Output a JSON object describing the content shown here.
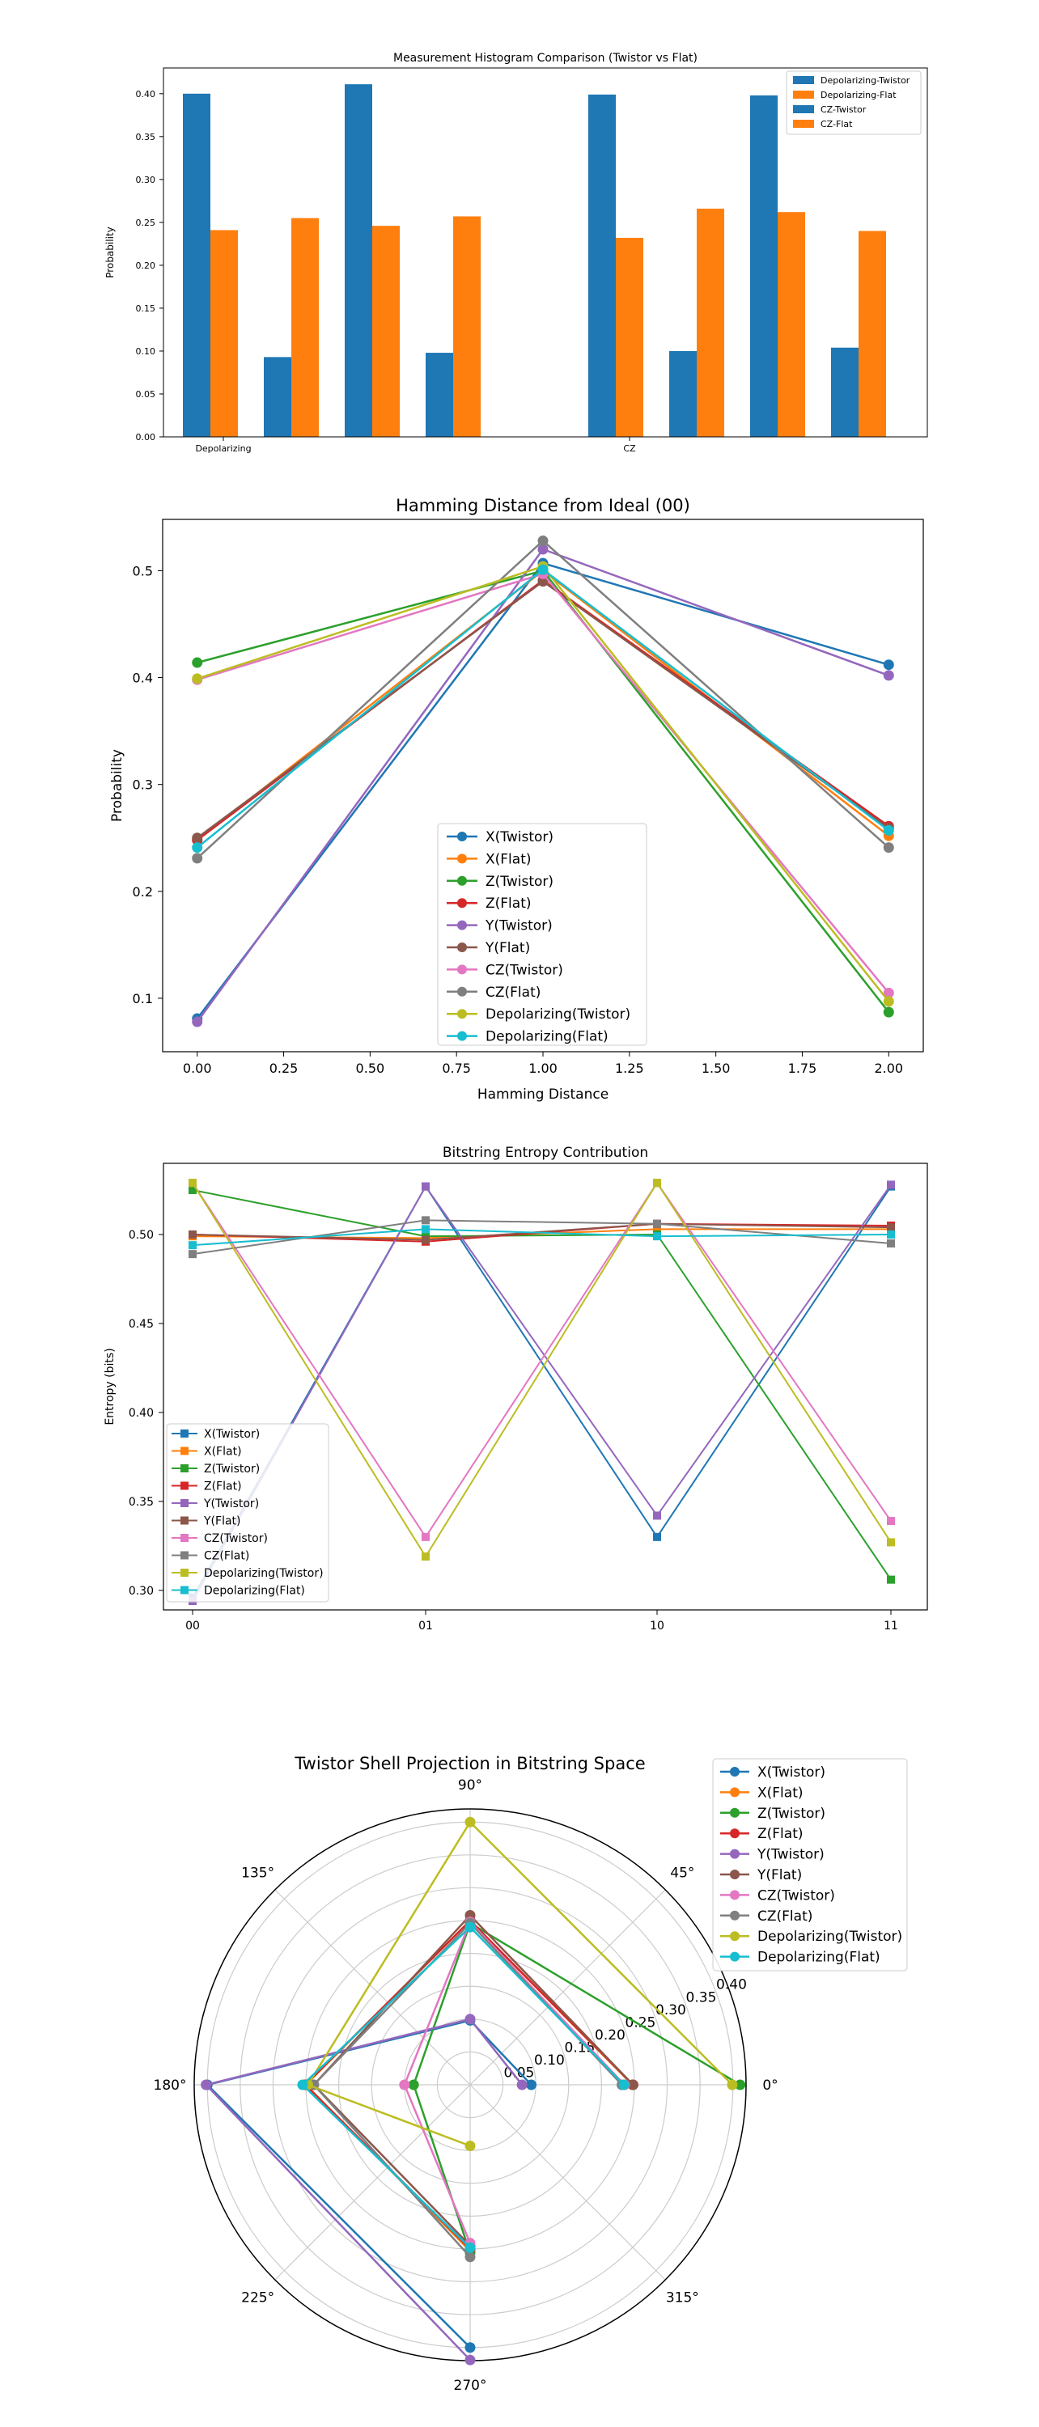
{
  "colors": {
    "blue": "#1f77b4",
    "orange": "#ff7f0e",
    "green": "#2ca02c",
    "red": "#d62728",
    "purple": "#9467bd",
    "brown": "#8c564b",
    "pink": "#e377c2",
    "gray": "#7f7f7f",
    "olive": "#bcbd22",
    "cyan": "#17becf"
  },
  "chart_data": [
    {
      "type": "bar",
      "title": "Measurement Histogram Comparison (Twistor vs Flat)",
      "xlabel": "",
      "ylabel": "Probability",
      "ylim": [
        0,
        0.43
      ],
      "yticks": [
        "0.00",
        "0.05",
        "0.10",
        "0.15",
        "0.20",
        "0.25",
        "0.30",
        "0.35",
        "0.40"
      ],
      "group_labels": [
        "Depolarizing",
        "CZ"
      ],
      "legend_position": "upper right",
      "series": [
        {
          "name": "Depolarizing-Twistor",
          "color": "#1f77b4",
          "values": [
            0.4,
            0.093,
            0.411,
            0.098
          ]
        },
        {
          "name": "Depolarizing-Flat",
          "color": "#ff7f0e",
          "values": [
            0.241,
            0.255,
            0.246,
            0.257
          ]
        },
        {
          "name": "CZ-Twistor",
          "color": "#1f77b4",
          "values": [
            0.399,
            0.1,
            0.398,
            0.104
          ]
        },
        {
          "name": "CZ-Flat",
          "color": "#ff7f0e",
          "values": [
            0.232,
            0.266,
            0.262,
            0.24
          ]
        }
      ]
    },
    {
      "type": "line",
      "title": "Hamming Distance from Ideal (00)",
      "xlabel": "Hamming Distance",
      "ylabel": "Probability",
      "x": [
        0,
        1,
        2
      ],
      "xlim": [
        -0.1,
        2.1
      ],
      "ylim": [
        0.05,
        0.548
      ],
      "xticks": [
        "0.00",
        "0.25",
        "0.50",
        "0.75",
        "1.00",
        "1.25",
        "1.50",
        "1.75",
        "2.00"
      ],
      "yticks": [
        "0.1",
        "0.2",
        "0.3",
        "0.4",
        "0.5"
      ],
      "legend_position": "lower center",
      "series": [
        {
          "name": "X(Twistor)",
          "color": "#1f77b4",
          "values": [
            0.081,
            0.507,
            0.412
          ]
        },
        {
          "name": "X(Flat)",
          "color": "#ff7f0e",
          "values": [
            0.248,
            0.5,
            0.252
          ]
        },
        {
          "name": "Z(Twistor)",
          "color": "#2ca02c",
          "values": [
            0.414,
            0.5,
            0.087
          ]
        },
        {
          "name": "Z(Flat)",
          "color": "#d62728",
          "values": [
            0.248,
            0.491,
            0.261
          ]
        },
        {
          "name": "Y(Twistor)",
          "color": "#9467bd",
          "values": [
            0.078,
            0.52,
            0.402
          ]
        },
        {
          "name": "Y(Flat)",
          "color": "#8c564b",
          "values": [
            0.25,
            0.49,
            0.259
          ]
        },
        {
          "name": "CZ(Twistor)",
          "color": "#e377c2",
          "values": [
            0.398,
            0.497,
            0.105
          ]
        },
        {
          "name": "CZ(Flat)",
          "color": "#7f7f7f",
          "values": [
            0.231,
            0.528,
            0.241
          ]
        },
        {
          "name": "Depolarizing(Twistor)",
          "color": "#bcbd22",
          "values": [
            0.399,
            0.504,
            0.097
          ]
        },
        {
          "name": "Depolarizing(Flat)",
          "color": "#17becf",
          "values": [
            0.241,
            0.501,
            0.257
          ]
        }
      ]
    },
    {
      "type": "line",
      "title": "Bitstring Entropy Contribution",
      "xlabel": "",
      "ylabel": "Entropy (bits)",
      "categories": [
        "00",
        "01",
        "10",
        "11"
      ],
      "ylim": [
        0.289,
        0.54
      ],
      "yticks": [
        "0.30",
        "0.35",
        "0.40",
        "0.45",
        "0.50"
      ],
      "legend_position": "lower left",
      "series": [
        {
          "name": "X(Twistor)",
          "color": "#1f77b4",
          "values": [
            0.296,
            0.527,
            0.33,
            0.527
          ]
        },
        {
          "name": "X(Flat)",
          "color": "#ff7f0e",
          "values": [
            0.499,
            0.498,
            0.503,
            0.503
          ]
        },
        {
          "name": "Z(Twistor)",
          "color": "#2ca02c",
          "values": [
            0.525,
            0.499,
            0.5,
            0.306
          ]
        },
        {
          "name": "Z(Flat)",
          "color": "#d62728",
          "values": [
            0.5,
            0.496,
            0.506,
            0.505
          ]
        },
        {
          "name": "Y(Twistor)",
          "color": "#9467bd",
          "values": [
            0.294,
            0.527,
            0.342,
            0.528
          ]
        },
        {
          "name": "Y(Flat)",
          "color": "#8c564b",
          "values": [
            0.5,
            0.497,
            0.506,
            0.504
          ]
        },
        {
          "name": "CZ(Twistor)",
          "color": "#e377c2",
          "values": [
            0.529,
            0.33,
            0.529,
            0.339
          ]
        },
        {
          "name": "CZ(Flat)",
          "color": "#7f7f7f",
          "values": [
            0.489,
            0.508,
            0.506,
            0.495
          ]
        },
        {
          "name": "Depolarizing(Twistor)",
          "color": "#bcbd22",
          "values": [
            0.529,
            0.319,
            0.529,
            0.327
          ]
        },
        {
          "name": "Depolarizing(Flat)",
          "color": "#17becf",
          "values": [
            0.494,
            0.503,
            0.499,
            0.5
          ]
        }
      ]
    },
    {
      "type": "polar",
      "title": "Twistor Shell Projection in Bitstring Space",
      "angles_deg": [
        0,
        90,
        180,
        270
      ],
      "rmax": 0.42,
      "rticks": [
        "0.05",
        "0.10",
        "0.15",
        "0.20",
        "0.25",
        "0.30",
        "0.35",
        "0.40"
      ],
      "theta_labels": [
        "0°",
        "45°",
        "90°",
        "135°",
        "180°",
        "225°",
        "270°",
        "315°"
      ],
      "legend_position": "upper right outside",
      "series": [
        {
          "name": "X(Twistor)",
          "color": "#1f77b4",
          "values": [
            0.093,
            0.098,
            0.4,
            0.4
          ]
        },
        {
          "name": "X(Flat)",
          "color": "#ff7f0e",
          "values": [
            0.247,
            0.25,
            0.25,
            0.253
          ]
        },
        {
          "name": "Z(Twistor)",
          "color": "#2ca02c",
          "values": [
            0.411,
            0.246,
            0.086,
            0.256
          ]
        },
        {
          "name": "Z(Flat)",
          "color": "#d62728",
          "values": [
            0.248,
            0.25,
            0.251,
            0.25
          ]
        },
        {
          "name": "Y(Twistor)",
          "color": "#9467bd",
          "values": [
            0.079,
            0.1,
            0.402,
            0.419
          ]
        },
        {
          "name": "Y(Flat)",
          "color": "#8c564b",
          "values": [
            0.248,
            0.258,
            0.238,
            0.245
          ]
        },
        {
          "name": "CZ(Twistor)",
          "color": "#e377c2",
          "values": [
            0.235,
            0.248,
            0.1,
            0.241
          ]
        },
        {
          "name": "CZ(Flat)",
          "color": "#7f7f7f",
          "values": [
            0.231,
            0.246,
            0.238,
            0.262
          ]
        },
        {
          "name": "Depolarizing(Twistor)",
          "color": "#bcbd22",
          "values": [
            0.399,
            0.4,
            0.247,
            0.093
          ]
        },
        {
          "name": "Depolarizing(Flat)",
          "color": "#17becf",
          "values": [
            0.234,
            0.24,
            0.255,
            0.248
          ]
        }
      ]
    }
  ]
}
